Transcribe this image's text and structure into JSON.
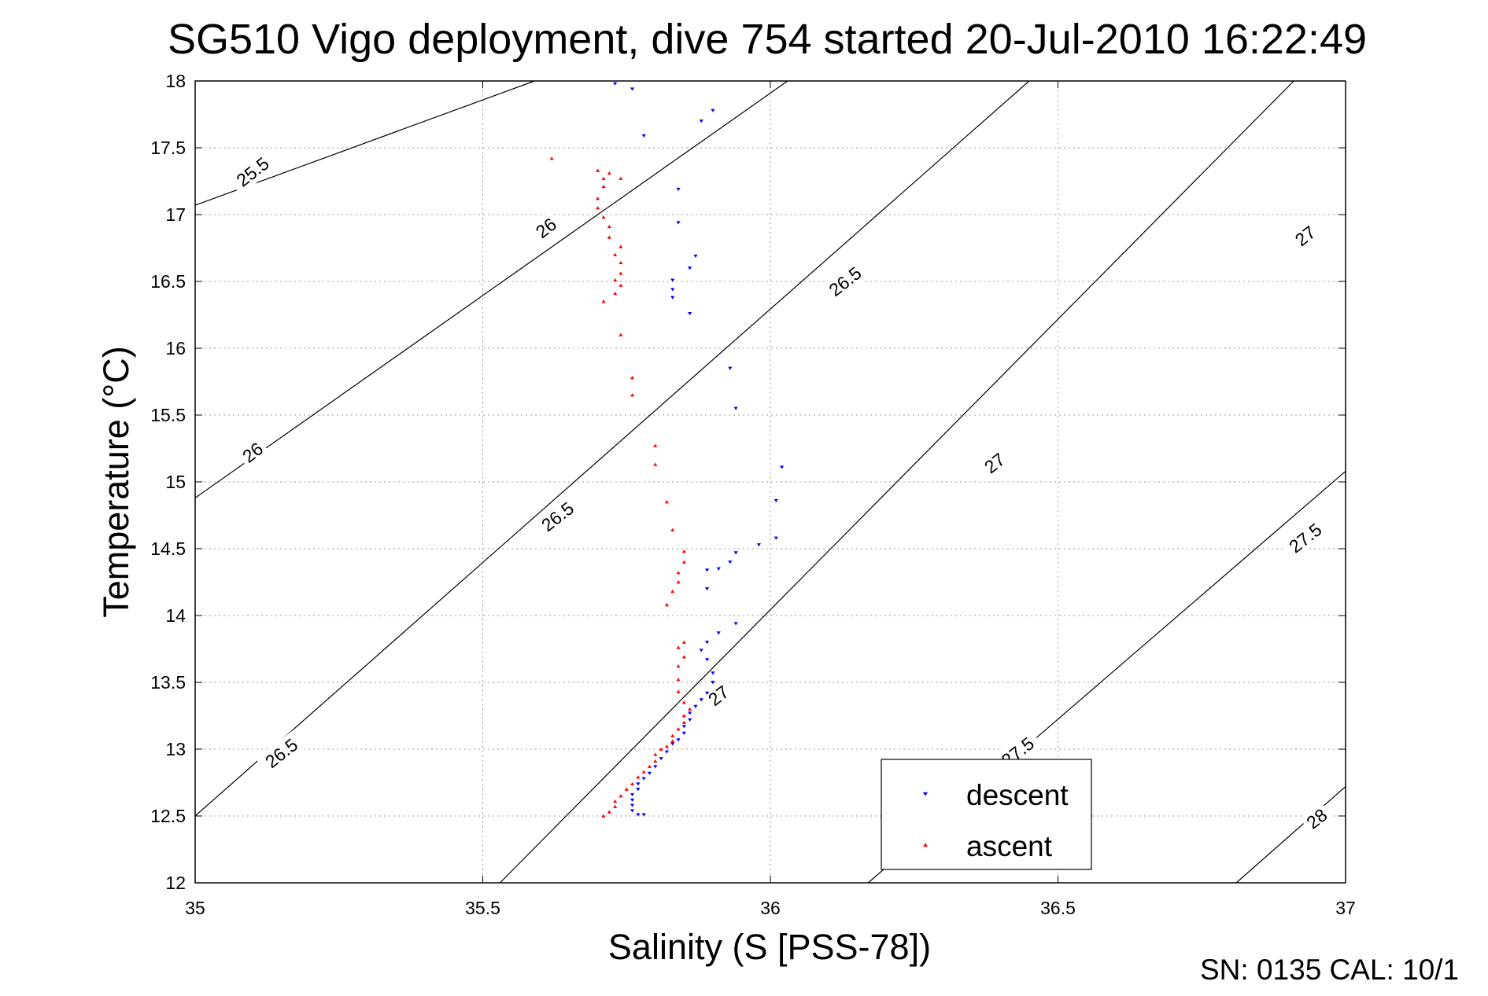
{
  "chart_data": {
    "type": "scatter",
    "title": "SG510 Vigo deployment, dive 754 started 20-Jul-2010 16:22:49",
    "xlabel": "Salinity (S [PSS-78])",
    "ylabel": "Temperature (°C)",
    "xlim": [
      35,
      37
    ],
    "ylim": [
      12,
      18
    ],
    "xticks": [
      "35",
      "35.5",
      "36",
      "36.5",
      "37"
    ],
    "yticks": [
      "12",
      "12.5",
      "13",
      "13.5",
      "14",
      "14.5",
      "15",
      "15.5",
      "16",
      "16.5",
      "17",
      "17.5",
      "18"
    ],
    "grid": true,
    "legend_position": "bottom-right",
    "series": [
      {
        "name": "descent",
        "color": "#0000ff",
        "marker": "triangle-down",
        "points": [
          [
            35.73,
            17.98
          ],
          [
            35.76,
            17.94
          ],
          [
            35.88,
            17.7
          ],
          [
            35.9,
            17.78
          ],
          [
            35.78,
            17.59
          ],
          [
            35.84,
            17.19
          ],
          [
            35.84,
            16.94
          ],
          [
            35.87,
            16.69
          ],
          [
            35.86,
            16.6
          ],
          [
            35.83,
            16.51
          ],
          [
            35.83,
            16.44
          ],
          [
            35.83,
            16.38
          ],
          [
            35.86,
            16.26
          ],
          [
            35.93,
            15.85
          ],
          [
            35.94,
            15.55
          ],
          [
            36.02,
            15.11
          ],
          [
            36.01,
            14.86
          ],
          [
            36.01,
            14.58
          ],
          [
            35.98,
            14.53
          ],
          [
            35.94,
            14.47
          ],
          [
            35.93,
            14.4
          ],
          [
            35.91,
            14.35
          ],
          [
            35.89,
            14.34
          ],
          [
            35.89,
            14.2
          ],
          [
            35.94,
            13.94
          ],
          [
            35.91,
            13.87
          ],
          [
            35.89,
            13.8
          ],
          [
            35.88,
            13.74
          ],
          [
            35.89,
            13.67
          ],
          [
            35.9,
            13.57
          ],
          [
            35.9,
            13.5
          ],
          [
            35.89,
            13.42
          ],
          [
            35.88,
            13.37
          ],
          [
            35.87,
            13.32
          ],
          [
            35.86,
            13.27
          ],
          [
            35.86,
            13.22
          ],
          [
            35.85,
            13.17
          ],
          [
            35.85,
            13.12
          ],
          [
            35.84,
            13.07
          ],
          [
            35.83,
            13.04
          ],
          [
            35.82,
            12.98
          ],
          [
            35.81,
            12.93
          ],
          [
            35.8,
            12.87
          ],
          [
            35.79,
            12.82
          ],
          [
            35.78,
            12.78
          ],
          [
            35.77,
            12.74
          ],
          [
            35.77,
            12.7
          ],
          [
            35.76,
            12.66
          ],
          [
            35.76,
            12.62
          ],
          [
            35.76,
            12.58
          ],
          [
            35.76,
            12.54
          ],
          [
            35.77,
            12.51
          ],
          [
            35.78,
            12.51
          ]
        ]
      },
      {
        "name": "ascent",
        "color": "#ff0000",
        "marker": "triangle-up",
        "points": [
          [
            35.62,
            17.42
          ],
          [
            35.7,
            17.33
          ],
          [
            35.72,
            17.31
          ],
          [
            35.71,
            17.27
          ],
          [
            35.74,
            17.27
          ],
          [
            35.71,
            17.21
          ],
          [
            35.7,
            17.12
          ],
          [
            35.7,
            17.05
          ],
          [
            35.71,
            16.98
          ],
          [
            35.72,
            16.91
          ],
          [
            35.72,
            16.83
          ],
          [
            35.74,
            16.76
          ],
          [
            35.73,
            16.7
          ],
          [
            35.74,
            16.64
          ],
          [
            35.74,
            16.56
          ],
          [
            35.73,
            16.51
          ],
          [
            35.74,
            16.47
          ],
          [
            35.73,
            16.41
          ],
          [
            35.71,
            16.35
          ],
          [
            35.74,
            16.1
          ],
          [
            35.76,
            15.78
          ],
          [
            35.76,
            15.65
          ],
          [
            35.8,
            15.27
          ],
          [
            35.8,
            15.13
          ],
          [
            35.82,
            14.85
          ],
          [
            35.83,
            14.64
          ],
          [
            35.85,
            14.48
          ],
          [
            35.85,
            14.4
          ],
          [
            35.84,
            14.32
          ],
          [
            35.84,
            14.25
          ],
          [
            35.83,
            14.18
          ],
          [
            35.82,
            14.08
          ],
          [
            35.85,
            13.8
          ],
          [
            35.84,
            13.76
          ],
          [
            35.85,
            13.69
          ],
          [
            35.84,
            13.62
          ],
          [
            35.84,
            13.52
          ],
          [
            35.84,
            13.43
          ],
          [
            35.85,
            13.35
          ],
          [
            35.86,
            13.3
          ],
          [
            35.85,
            13.25
          ],
          [
            35.85,
            13.2
          ],
          [
            35.84,
            13.15
          ],
          [
            35.83,
            13.1
          ],
          [
            35.83,
            13.06
          ],
          [
            35.82,
            13.02
          ],
          [
            35.81,
            13.0
          ],
          [
            35.8,
            12.96
          ],
          [
            35.8,
            12.91
          ],
          [
            35.79,
            12.87
          ],
          [
            35.78,
            12.83
          ],
          [
            35.77,
            12.79
          ],
          [
            35.76,
            12.74
          ],
          [
            35.75,
            12.7
          ],
          [
            35.74,
            12.65
          ],
          [
            35.73,
            12.61
          ],
          [
            35.73,
            12.57
          ],
          [
            35.72,
            12.53
          ],
          [
            35.71,
            12.5
          ]
        ]
      }
    ],
    "contours": [
      {
        "label": "25.5",
        "t_intercepts": [
          [
            35,
            17.07
          ],
          [
            35.59,
            18
          ]
        ]
      },
      {
        "label": "26",
        "t_intercepts": [
          [
            35,
            14.88
          ],
          [
            36.03,
            18
          ]
        ]
      },
      {
        "label": "26.5",
        "t_intercepts": [
          [
            35,
            12.5
          ],
          [
            36.45,
            18
          ]
        ]
      },
      {
        "label": "27",
        "t_intercepts": [
          [
            35.53,
            12
          ],
          [
            36.91,
            18
          ]
        ]
      },
      {
        "label": "27.5",
        "t_intercepts": [
          [
            36.17,
            12
          ],
          [
            37,
            15.08
          ]
        ]
      },
      {
        "label": "28",
        "t_intercepts": [
          [
            36.81,
            12
          ],
          [
            37,
            12.72
          ]
        ]
      }
    ],
    "contour_labels": [
      {
        "text": "25.5",
        "s": 35.1,
        "t": 17.32
      },
      {
        "text": "26",
        "s": 35.61,
        "t": 16.9
      },
      {
        "text": "26",
        "s": 35.1,
        "t": 15.22
      },
      {
        "text": "26.5",
        "s": 36.13,
        "t": 16.5
      },
      {
        "text": "26.5",
        "s": 35.63,
        "t": 14.74
      },
      {
        "text": "26.5",
        "s": 35.15,
        "t": 12.97
      },
      {
        "text": "27",
        "s": 36.93,
        "t": 16.84
      },
      {
        "text": "27",
        "s": 36.39,
        "t": 15.14
      },
      {
        "text": "27",
        "s": 35.91,
        "t": 13.4
      },
      {
        "text": "27.5",
        "s": 36.93,
        "t": 14.58
      },
      {
        "text": "27.5",
        "s": 36.43,
        "t": 12.98
      },
      {
        "text": "28",
        "s": 36.95,
        "t": 12.48
      }
    ]
  },
  "legend": {
    "descent_label": "descent",
    "ascent_label": "ascent"
  },
  "footer": {
    "text": "SN: 0135  CAL: 10/1"
  }
}
